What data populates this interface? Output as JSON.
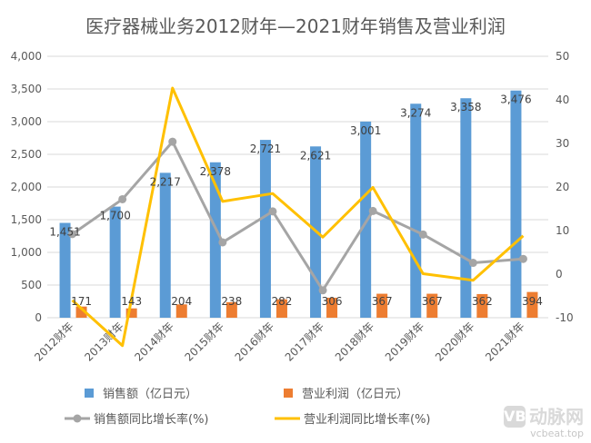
{
  "chart_data": {
    "type": "bar",
    "title": "医疗器械业务2012财年—2021财年销售及营业利润",
    "categories": [
      "2012财年",
      "2013财年",
      "2014财年",
      "2015财年",
      "2016财年",
      "2017财年",
      "2018财年",
      "2019财年",
      "2020财年",
      "2021财年"
    ],
    "y_left": {
      "ylim": [
        0,
        4000
      ],
      "ticks": [
        "0",
        "500",
        "1,000",
        "1,500",
        "2,000",
        "2,500",
        "3,000",
        "3,500",
        "4,000"
      ]
    },
    "y_right": {
      "ylim": [
        -10,
        50
      ],
      "ticks": [
        "-10",
        "0",
        "10",
        "20",
        "30",
        "40",
        "50"
      ]
    },
    "grid": true,
    "legend_position": "bottom",
    "series": [
      {
        "name": "销售额（亿日元）",
        "kind": "bar",
        "axis": "left",
        "color": "#5b9bd5",
        "values": [
          1451,
          1700,
          2217,
          2378,
          2721,
          2621,
          3001,
          3274,
          3358,
          3476
        ],
        "labels": [
          "1,451",
          "1,700",
          "2,217",
          "2,378",
          "2,721",
          "2,621",
          "3,001",
          "3,274",
          "3,358",
          "3,476"
        ]
      },
      {
        "name": "营业利润（亿日元）",
        "kind": "bar",
        "axis": "left",
        "color": "#ed7d31",
        "values": [
          171,
          143,
          204,
          238,
          282,
          306,
          367,
          367,
          362,
          394
        ],
        "labels": [
          "171",
          "143",
          "204",
          "238",
          "282",
          "306",
          "367",
          "367",
          "362",
          "394"
        ]
      },
      {
        "name": "销售额同比增长率(%)",
        "kind": "line",
        "axis": "right",
        "color": "#a5a5a5",
        "values": [
          9.2,
          17.2,
          30.4,
          7.3,
          14.4,
          -3.7,
          14.5,
          9.1,
          2.6,
          3.5
        ]
      },
      {
        "name": "营业利润同比增长率(%)",
        "kind": "line",
        "axis": "right",
        "color": "#ffc000",
        "values": [
          -6.0,
          -16.4,
          42.7,
          16.7,
          18.5,
          8.5,
          19.9,
          0.1,
          -1.4,
          8.8
        ]
      }
    ]
  },
  "watermark": {
    "badge": "VB",
    "name": "动脉网",
    "url": "vcbeat.top"
  }
}
